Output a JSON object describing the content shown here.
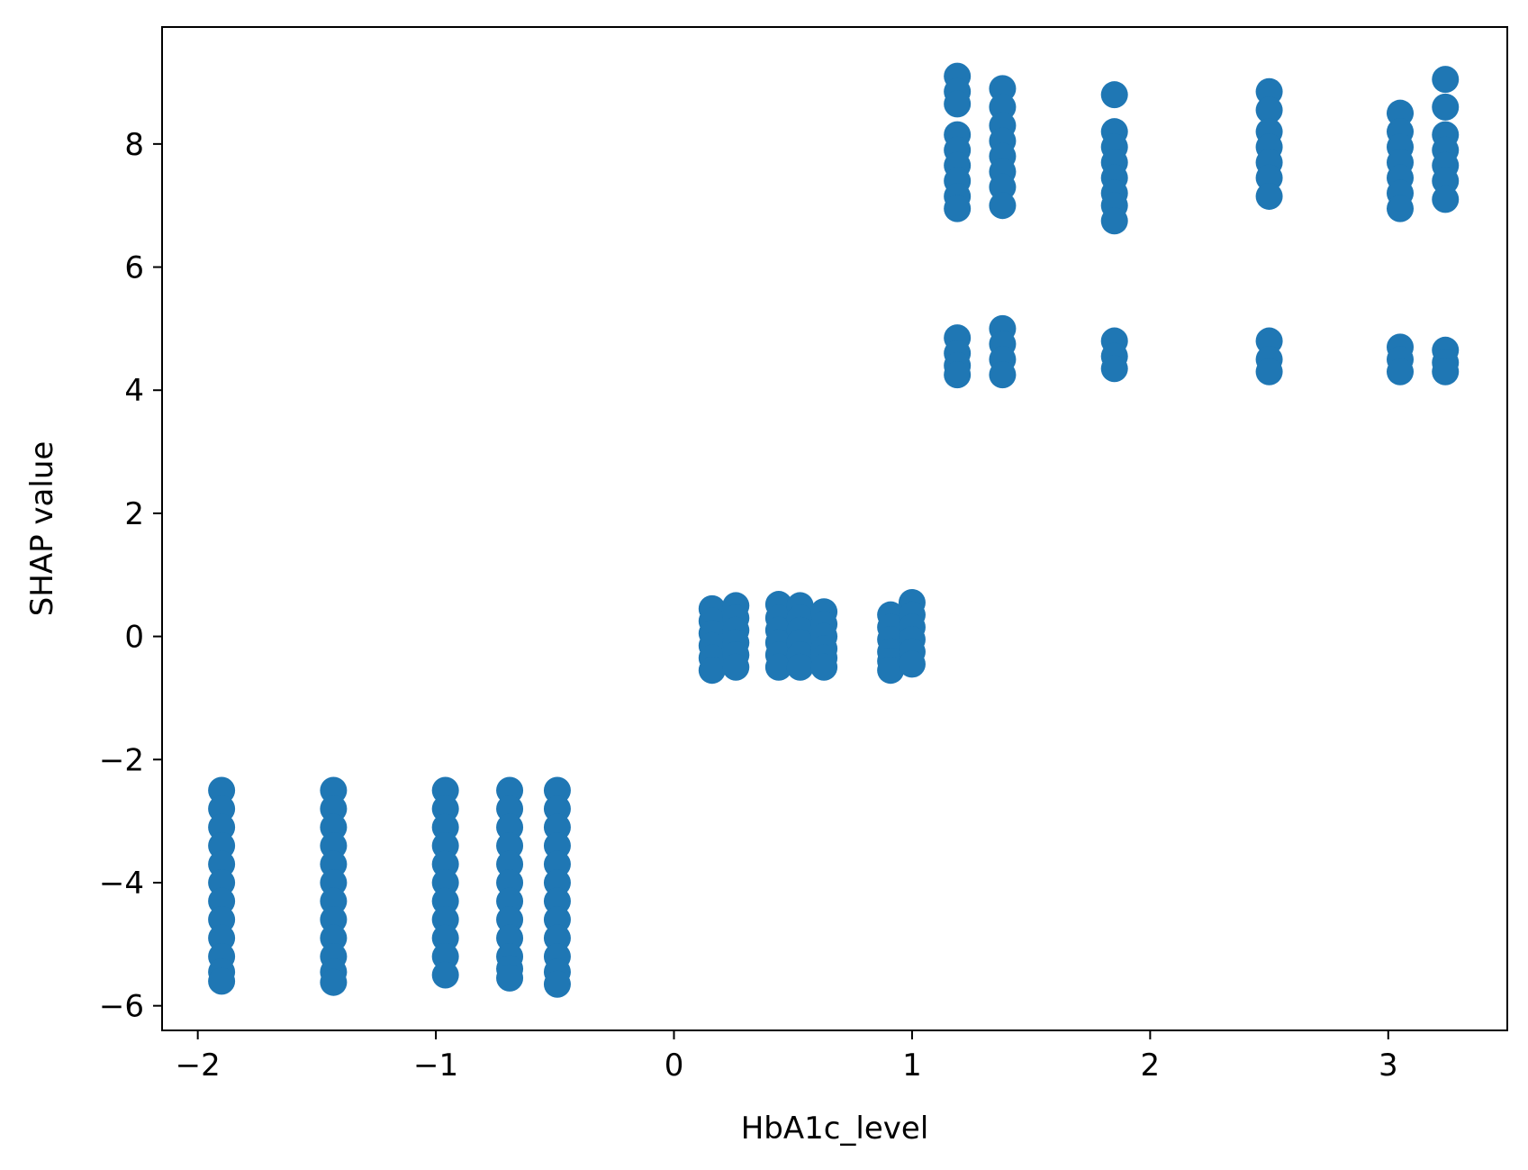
{
  "chart_data": {
    "type": "scatter",
    "title": "",
    "xlabel": "HbA1c_level",
    "ylabel": "SHAP value",
    "xlim": [
      -2.15,
      3.5
    ],
    "ylim": [
      -6.4,
      9.9
    ],
    "x_ticks": [
      {
        "value": -2,
        "label": "−2"
      },
      {
        "value": -1,
        "label": "−1"
      },
      {
        "value": 0,
        "label": "0"
      },
      {
        "value": 1,
        "label": "1"
      },
      {
        "value": 2,
        "label": "2"
      },
      {
        "value": 3,
        "label": "3"
      }
    ],
    "y_ticks": [
      {
        "value": -6,
        "label": "−6"
      },
      {
        "value": -4,
        "label": "−4"
      },
      {
        "value": -2,
        "label": "−2"
      },
      {
        "value": 0,
        "label": "0"
      },
      {
        "value": 2,
        "label": "2"
      },
      {
        "value": 4,
        "label": "4"
      },
      {
        "value": 6,
        "label": "6"
      },
      {
        "value": 8,
        "label": "8"
      }
    ],
    "grid": false,
    "legend": "none",
    "marker_color": "#1f77b4",
    "series": [
      {
        "points": [
          [
            -1.9,
            -2.5
          ],
          [
            -1.9,
            -2.8
          ],
          [
            -1.9,
            -3.1
          ],
          [
            -1.9,
            -3.4
          ],
          [
            -1.9,
            -3.7
          ],
          [
            -1.9,
            -4.0
          ],
          [
            -1.9,
            -4.3
          ],
          [
            -1.9,
            -4.6
          ],
          [
            -1.9,
            -4.9
          ],
          [
            -1.9,
            -5.2
          ],
          [
            -1.9,
            -5.45
          ],
          [
            -1.9,
            -5.6
          ],
          [
            -1.43,
            -2.5
          ],
          [
            -1.43,
            -2.8
          ],
          [
            -1.43,
            -3.1
          ],
          [
            -1.43,
            -3.4
          ],
          [
            -1.43,
            -3.7
          ],
          [
            -1.43,
            -4.0
          ],
          [
            -1.43,
            -4.3
          ],
          [
            -1.43,
            -4.6
          ],
          [
            -1.43,
            -4.9
          ],
          [
            -1.43,
            -5.2
          ],
          [
            -1.43,
            -5.45
          ],
          [
            -1.43,
            -5.62
          ],
          [
            -0.96,
            -2.5
          ],
          [
            -0.96,
            -2.8
          ],
          [
            -0.96,
            -3.1
          ],
          [
            -0.96,
            -3.4
          ],
          [
            -0.96,
            -3.7
          ],
          [
            -0.96,
            -4.0
          ],
          [
            -0.96,
            -4.3
          ],
          [
            -0.96,
            -4.6
          ],
          [
            -0.96,
            -4.9
          ],
          [
            -0.96,
            -5.2
          ],
          [
            -0.96,
            -5.5
          ],
          [
            -0.69,
            -2.5
          ],
          [
            -0.69,
            -2.8
          ],
          [
            -0.69,
            -3.1
          ],
          [
            -0.69,
            -3.4
          ],
          [
            -0.69,
            -3.7
          ],
          [
            -0.69,
            -4.0
          ],
          [
            -0.69,
            -4.3
          ],
          [
            -0.69,
            -4.6
          ],
          [
            -0.69,
            -4.9
          ],
          [
            -0.69,
            -5.2
          ],
          [
            -0.69,
            -5.4
          ],
          [
            -0.69,
            -5.55
          ],
          [
            -0.49,
            -2.5
          ],
          [
            -0.49,
            -2.8
          ],
          [
            -0.49,
            -3.1
          ],
          [
            -0.49,
            -3.4
          ],
          [
            -0.49,
            -3.7
          ],
          [
            -0.49,
            -4.0
          ],
          [
            -0.49,
            -4.3
          ],
          [
            -0.49,
            -4.6
          ],
          [
            -0.49,
            -4.9
          ],
          [
            -0.49,
            -5.2
          ],
          [
            -0.49,
            -5.45
          ],
          [
            -0.49,
            -5.65
          ],
          [
            0.16,
            0.45
          ],
          [
            0.16,
            0.25
          ],
          [
            0.16,
            0.05
          ],
          [
            0.16,
            -0.15
          ],
          [
            0.16,
            -0.35
          ],
          [
            0.16,
            -0.55
          ],
          [
            0.26,
            0.5
          ],
          [
            0.26,
            0.3
          ],
          [
            0.26,
            0.1
          ],
          [
            0.26,
            -0.1
          ],
          [
            0.26,
            -0.3
          ],
          [
            0.26,
            -0.5
          ],
          [
            0.44,
            0.52
          ],
          [
            0.44,
            0.3
          ],
          [
            0.44,
            0.1
          ],
          [
            0.44,
            -0.1
          ],
          [
            0.44,
            -0.3
          ],
          [
            0.44,
            -0.5
          ],
          [
            0.53,
            0.5
          ],
          [
            0.53,
            0.3
          ],
          [
            0.53,
            0.1
          ],
          [
            0.53,
            -0.1
          ],
          [
            0.53,
            -0.3
          ],
          [
            0.53,
            -0.5
          ],
          [
            0.63,
            0.4
          ],
          [
            0.63,
            0.2
          ],
          [
            0.63,
            0.0
          ],
          [
            0.63,
            -0.2
          ],
          [
            0.63,
            -0.35
          ],
          [
            0.63,
            -0.5
          ],
          [
            0.91,
            0.35
          ],
          [
            0.91,
            0.15
          ],
          [
            0.91,
            -0.05
          ],
          [
            0.91,
            -0.25
          ],
          [
            0.91,
            -0.4
          ],
          [
            0.91,
            -0.55
          ],
          [
            1.0,
            0.55
          ],
          [
            1.0,
            0.35
          ],
          [
            1.0,
            0.15
          ],
          [
            1.0,
            -0.05
          ],
          [
            1.0,
            -0.25
          ],
          [
            1.0,
            -0.45
          ],
          [
            1.19,
            9.1
          ],
          [
            1.19,
            8.85
          ],
          [
            1.19,
            8.65
          ],
          [
            1.19,
            8.15
          ],
          [
            1.19,
            7.9
          ],
          [
            1.19,
            7.65
          ],
          [
            1.19,
            7.4
          ],
          [
            1.19,
            7.15
          ],
          [
            1.19,
            6.95
          ],
          [
            1.19,
            4.85
          ],
          [
            1.19,
            4.6
          ],
          [
            1.19,
            4.4
          ],
          [
            1.19,
            4.25
          ],
          [
            1.38,
            8.9
          ],
          [
            1.38,
            8.6
          ],
          [
            1.38,
            8.3
          ],
          [
            1.38,
            8.05
          ],
          [
            1.38,
            7.8
          ],
          [
            1.38,
            7.55
          ],
          [
            1.38,
            7.3
          ],
          [
            1.38,
            7.0
          ],
          [
            1.38,
            5.0
          ],
          [
            1.38,
            4.75
          ],
          [
            1.38,
            4.5
          ],
          [
            1.38,
            4.25
          ],
          [
            1.85,
            8.8
          ],
          [
            1.85,
            8.2
          ],
          [
            1.85,
            7.95
          ],
          [
            1.85,
            7.7
          ],
          [
            1.85,
            7.45
          ],
          [
            1.85,
            7.2
          ],
          [
            1.85,
            7.0
          ],
          [
            1.85,
            6.75
          ],
          [
            1.85,
            4.8
          ],
          [
            1.85,
            4.55
          ],
          [
            1.85,
            4.35
          ],
          [
            2.5,
            8.85
          ],
          [
            2.5,
            8.55
          ],
          [
            2.5,
            8.2
          ],
          [
            2.5,
            7.95
          ],
          [
            2.5,
            7.7
          ],
          [
            2.5,
            7.45
          ],
          [
            2.5,
            7.15
          ],
          [
            2.5,
            4.8
          ],
          [
            2.5,
            4.5
          ],
          [
            2.5,
            4.3
          ],
          [
            3.05,
            8.5
          ],
          [
            3.05,
            8.2
          ],
          [
            3.05,
            7.95
          ],
          [
            3.05,
            7.7
          ],
          [
            3.05,
            7.45
          ],
          [
            3.05,
            7.2
          ],
          [
            3.05,
            6.95
          ],
          [
            3.05,
            4.7
          ],
          [
            3.05,
            4.5
          ],
          [
            3.05,
            4.3
          ],
          [
            3.24,
            9.05
          ],
          [
            3.24,
            8.6
          ],
          [
            3.24,
            8.15
          ],
          [
            3.24,
            7.9
          ],
          [
            3.24,
            7.65
          ],
          [
            3.24,
            7.4
          ],
          [
            3.24,
            7.1
          ],
          [
            3.24,
            4.65
          ],
          [
            3.24,
            4.45
          ],
          [
            3.24,
            4.3
          ]
        ]
      }
    ]
  }
}
